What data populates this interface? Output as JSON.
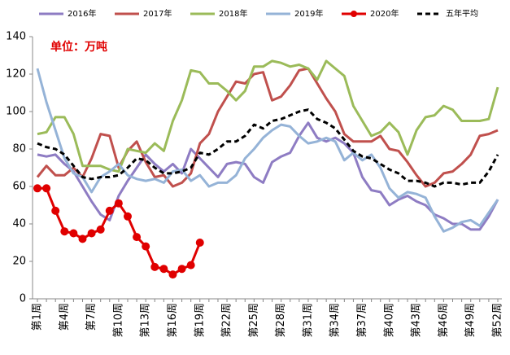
{
  "chart_data": {
    "type": "line",
    "annotation": "单位：万吨",
    "categories": [
      "第1周",
      null,
      null,
      "第4周",
      null,
      null,
      "第7周",
      null,
      null,
      "第10周",
      null,
      null,
      "第13周",
      null,
      null,
      "第16周",
      null,
      null,
      "第19周",
      null,
      null,
      "第22周",
      null,
      null,
      "第25周",
      null,
      null,
      "第28周",
      null,
      null,
      "第31周",
      null,
      null,
      "第34周",
      null,
      null,
      "第37周",
      null,
      null,
      "第40周",
      null,
      null,
      "第43周",
      null,
      null,
      "第46周",
      null,
      null,
      "第49周",
      null,
      null,
      "第52周"
    ],
    "ylim": [
      0,
      140
    ],
    "yticks": [
      0,
      20,
      40,
      60,
      80,
      100,
      120,
      140
    ],
    "series": [
      {
        "name": "2016年",
        "color": "#8e7cc3",
        "width": 3,
        "dash": false,
        "markers": false,
        "values": [
          77,
          76,
          77,
          72,
          68,
          60,
          52,
          45,
          42,
          55,
          63,
          70,
          77,
          72,
          68,
          72,
          67,
          80,
          75,
          70,
          65,
          72,
          73,
          72,
          65,
          62,
          73,
          76,
          78,
          87,
          94,
          86,
          84,
          86,
          83,
          78,
          65,
          58,
          57,
          50,
          53,
          55,
          52,
          50,
          45,
          43,
          40,
          40,
          37,
          37,
          44,
          53
        ]
      },
      {
        "name": "2017年",
        "color": "#c0504d",
        "width": 3,
        "dash": false,
        "markers": false,
        "values": [
          65,
          71,
          66,
          66,
          70,
          65,
          75,
          88,
          87,
          70,
          79,
          84,
          73,
          65,
          66,
          60,
          62,
          67,
          83,
          88,
          100,
          108,
          116,
          115,
          120,
          121,
          106,
          108,
          114,
          122,
          123,
          115,
          107,
          100,
          88,
          84,
          84,
          84,
          87,
          80,
          79,
          73,
          66,
          60,
          62,
          67,
          68,
          72,
          77,
          87,
          88,
          90
        ]
      },
      {
        "name": "2018年",
        "color": "#9bbb59",
        "width": 3,
        "dash": false,
        "markers": false,
        "values": [
          88,
          89,
          97,
          97,
          88,
          71,
          71,
          71,
          69,
          68,
          80,
          79,
          78,
          83,
          79,
          95,
          106,
          122,
          121,
          115,
          115,
          111,
          106,
          111,
          124,
          124,
          127,
          126,
          124,
          125,
          123,
          117,
          127,
          123,
          119,
          103,
          95,
          87,
          89,
          94,
          89,
          77,
          90,
          97,
          98,
          103,
          101,
          95,
          95,
          95,
          96,
          113
        ]
      },
      {
        "name": "2019年",
        "color": "#95b3d7",
        "width": 3,
        "dash": false,
        "markers": false,
        "values": [
          123,
          105,
          90,
          75,
          67,
          65,
          57,
          65,
          68,
          72,
          66,
          64,
          63,
          64,
          62,
          68,
          69,
          63,
          66,
          60,
          62,
          62,
          66,
          75,
          80,
          86,
          90,
          93,
          92,
          87,
          83,
          84,
          86,
          84,
          74,
          78,
          74,
          77,
          70,
          59,
          54,
          57,
          56,
          54,
          44,
          36,
          38,
          41,
          42,
          39,
          46,
          53
        ]
      },
      {
        "name": "2020年",
        "color": "#e00000",
        "width": 3,
        "dash": false,
        "markers": true,
        "values": [
          59,
          59,
          47,
          36,
          35,
          32,
          35,
          37,
          47,
          51,
          44,
          33,
          28,
          17,
          16,
          13,
          16,
          18,
          30,
          null,
          null,
          null,
          null,
          null,
          null,
          null,
          null,
          null,
          null,
          null,
          null,
          null,
          null,
          null,
          null,
          null,
          null,
          null,
          null,
          null,
          null,
          null,
          null,
          null,
          null,
          null,
          null,
          null,
          null,
          null,
          null,
          null
        ]
      },
      {
        "name": "五年平均",
        "color": "#000000",
        "width": 3,
        "dash": true,
        "markers": false,
        "values": [
          83,
          81,
          80,
          77,
          71,
          65,
          64,
          65,
          65,
          66,
          70,
          75,
          74,
          70,
          67,
          67,
          68,
          70,
          78,
          77,
          80,
          84,
          84,
          87,
          93,
          91,
          95,
          96,
          98,
          100,
          101,
          96,
          94,
          91,
          85,
          79,
          76,
          75,
          72,
          69,
          67,
          63,
          63,
          62,
          60,
          62,
          62,
          61,
          62,
          62,
          68,
          77
        ]
      }
    ]
  }
}
